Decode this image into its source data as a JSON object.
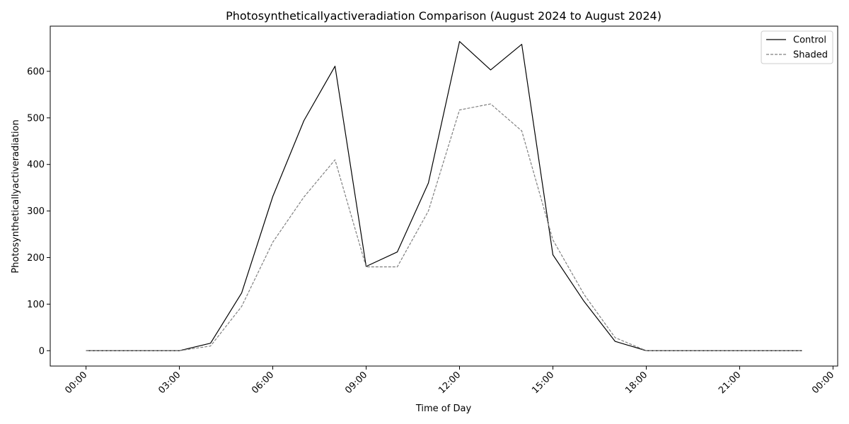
{
  "chart_data": {
    "type": "line",
    "title": "Photosyntheticallyactiveradiation Comparison (August 2024 to August 2024)",
    "xlabel": "Time of Day",
    "ylabel": "Photosyntheticallyactiveradiation",
    "x_unit": "hour",
    "x": [
      0,
      1,
      2,
      3,
      4,
      5,
      6,
      7,
      8,
      9,
      10,
      11,
      12,
      13,
      14,
      15,
      16,
      17,
      18,
      19,
      20,
      21,
      22,
      23
    ],
    "xlim": [
      -1.15,
      24.15
    ],
    "ylim": [
      -33,
      697
    ],
    "x_ticks": [
      0,
      3,
      6,
      9,
      12,
      15,
      18,
      21,
      24
    ],
    "x_tick_labels": [
      "00:00",
      "03:00",
      "06:00",
      "09:00",
      "12:00",
      "15:00",
      "18:00",
      "21:00",
      "00:00"
    ],
    "y_ticks": [
      0,
      100,
      200,
      300,
      400,
      500,
      600
    ],
    "y_tick_labels": [
      "0",
      "100",
      "200",
      "300",
      "400",
      "500",
      "600"
    ],
    "grid": false,
    "legend_position": "top-right",
    "series": [
      {
        "name": "Control",
        "color": "#000000",
        "dash": "solid",
        "values": [
          0,
          0,
          0,
          0,
          16,
          124,
          331,
          494,
          611,
          181,
          212,
          360,
          664,
          603,
          658,
          206,
          106,
          20,
          0,
          0,
          0,
          0,
          0,
          0
        ]
      },
      {
        "name": "Shaded",
        "color": "#808080",
        "dash": "dashed",
        "values": [
          0,
          0,
          0,
          0,
          10,
          95,
          233,
          330,
          410,
          180,
          180,
          300,
          517,
          530,
          472,
          238,
          121,
          28,
          0,
          0,
          0,
          0,
          0,
          0
        ]
      }
    ]
  }
}
